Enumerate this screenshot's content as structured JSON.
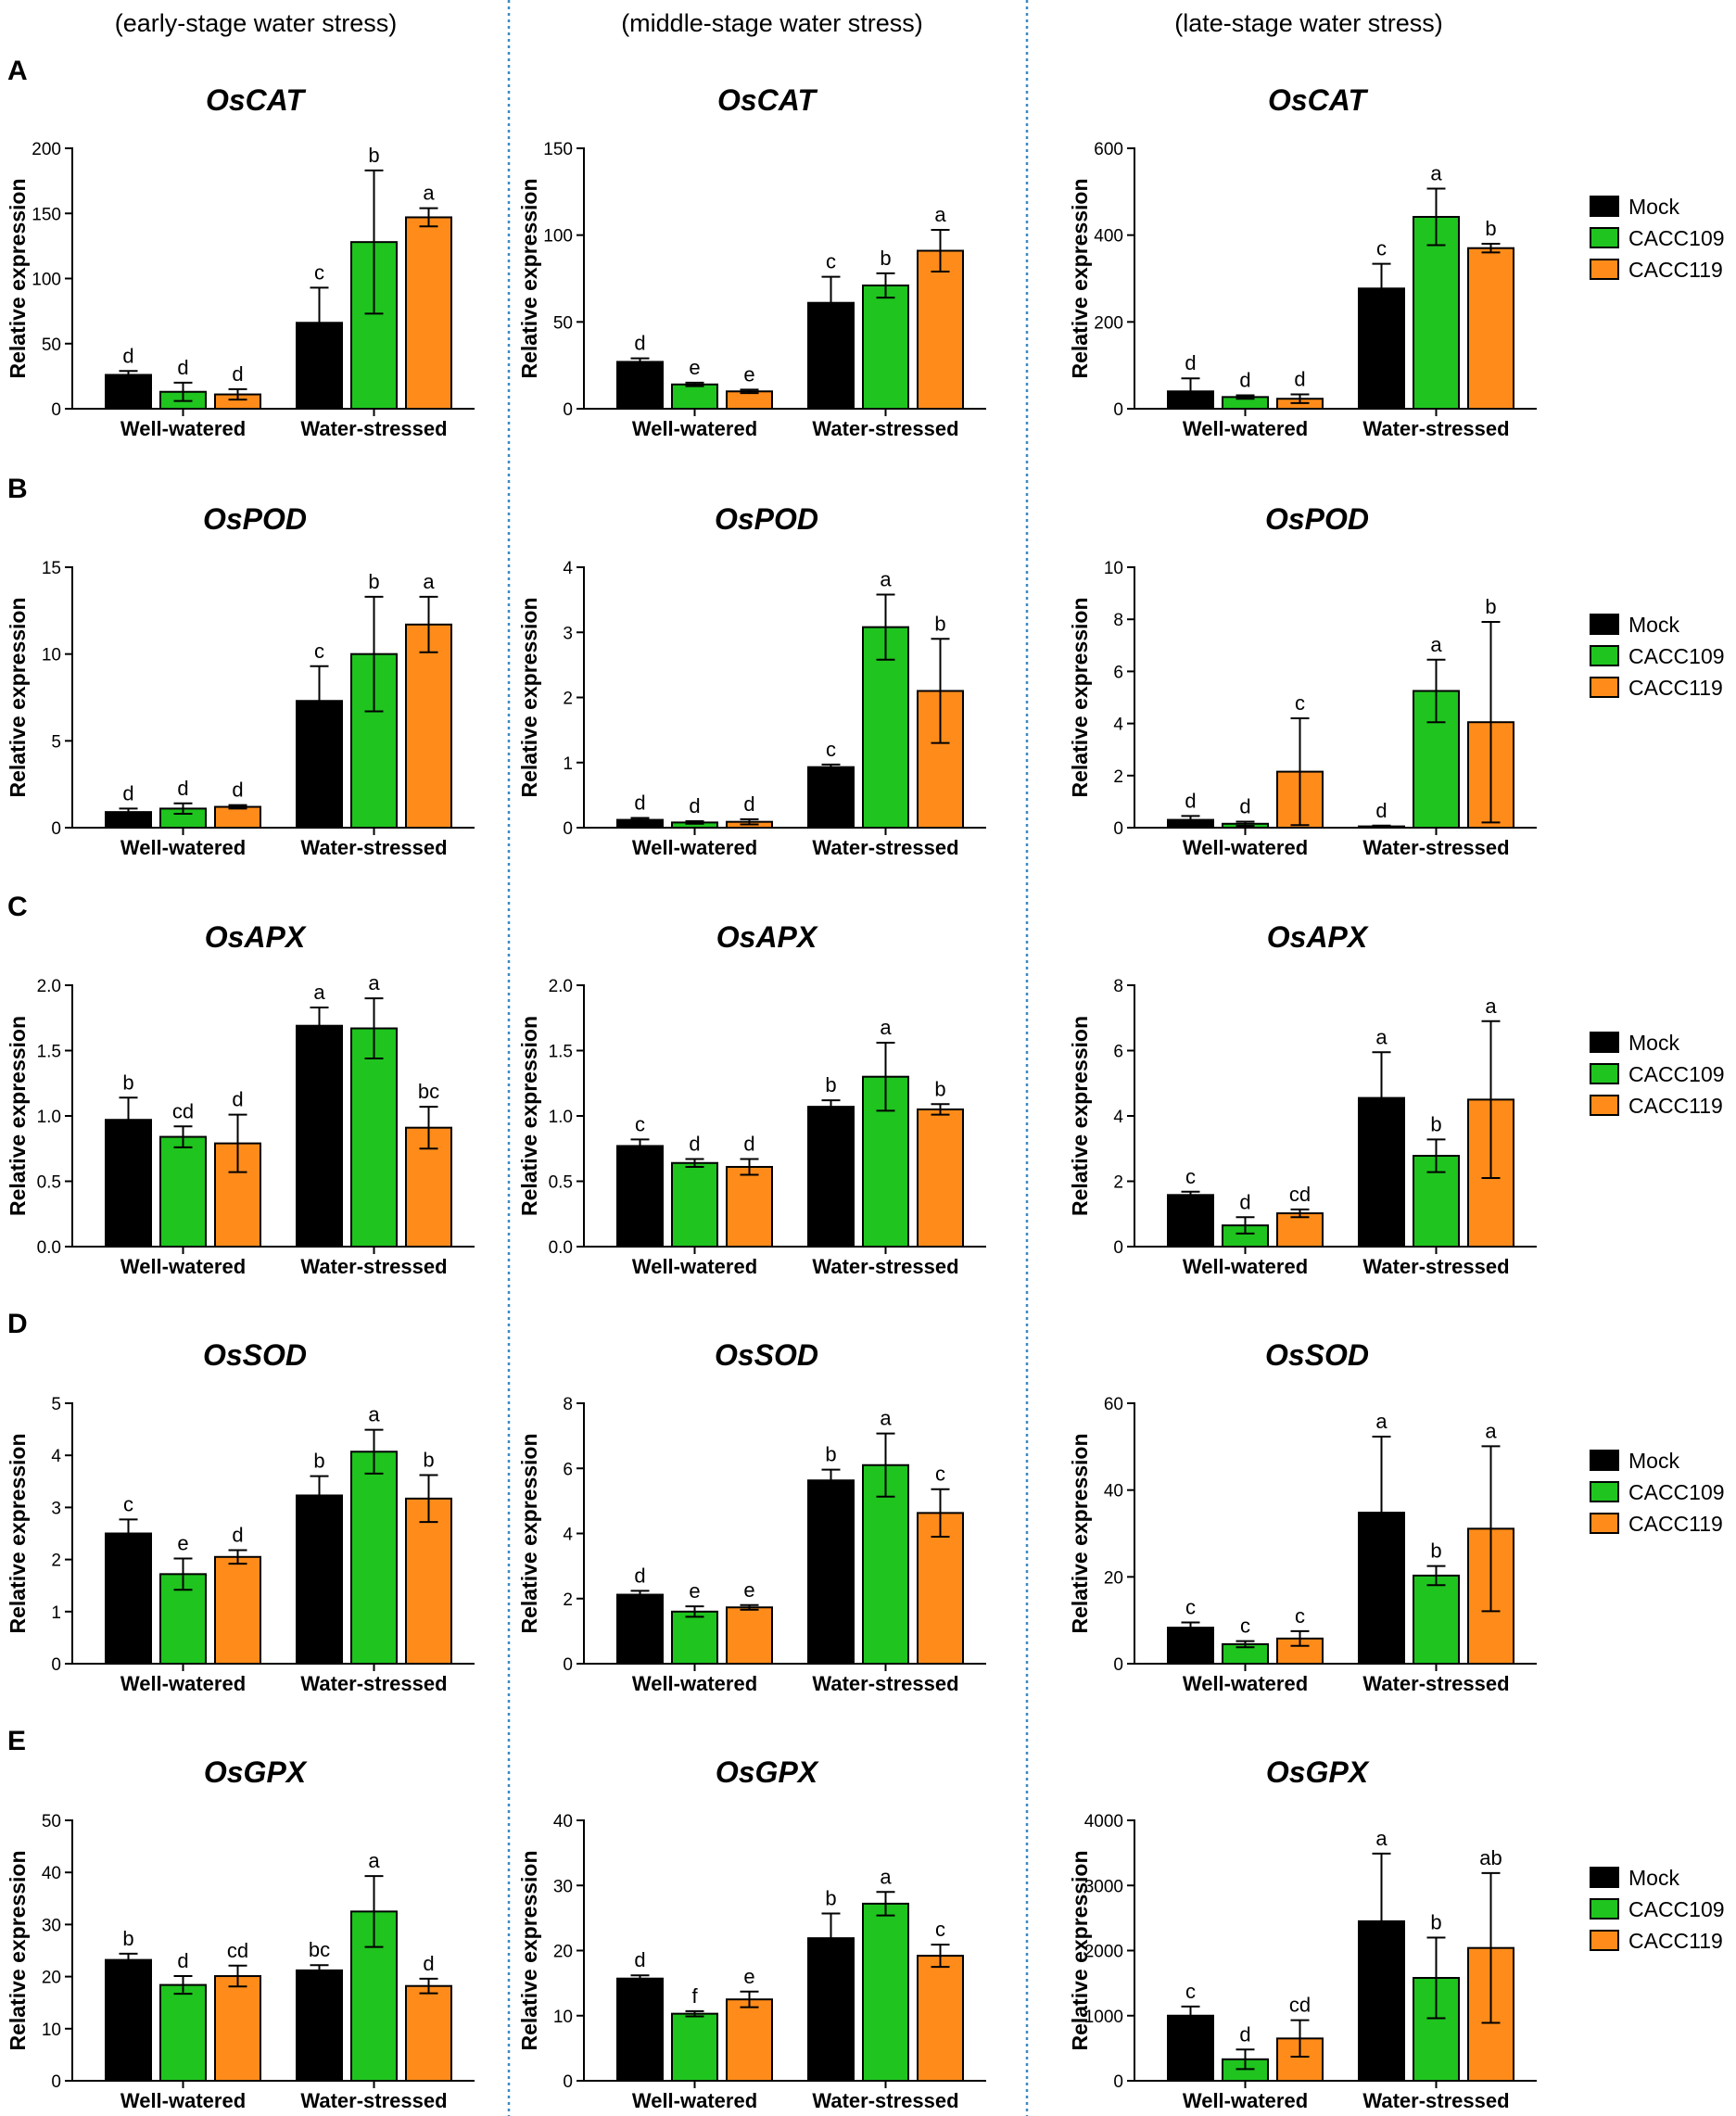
{
  "figure": {
    "column_headers": [
      "(early-stage water stress)",
      "(middle-stage water stress)",
      "(late-stage water stress)"
    ],
    "row_labels": [
      "A",
      "B",
      "C",
      "D",
      "E"
    ],
    "legend": [
      "Mock",
      "CACC109",
      "CACC119"
    ],
    "colors": {
      "Mock": "#000000",
      "CACC109": "#1fc41f",
      "CACC119": "#ff8c1a"
    }
  },
  "chart_data": [
    {
      "row": 0,
      "col": 0,
      "type": "bar",
      "title": "OsCAT",
      "ylabel": "Relative expression",
      "categories": [
        "Well-watered",
        "Water-stressed"
      ],
      "ylim": [
        0,
        200
      ],
      "yticks": [
        0,
        50,
        100,
        150,
        200
      ],
      "tick_labels": [
        "0",
        "50",
        "100",
        "150",
        "200"
      ],
      "series": [
        {
          "name": "Mock",
          "values": [
            26,
            66
          ],
          "errors": [
            3,
            27
          ],
          "labels": [
            "d",
            "c"
          ]
        },
        {
          "name": "CACC109",
          "values": [
            13,
            128
          ],
          "errors": [
            7,
            55
          ],
          "labels": [
            "d",
            "b"
          ]
        },
        {
          "name": "CACC119",
          "values": [
            11,
            147
          ],
          "errors": [
            4,
            7
          ],
          "labels": [
            "d",
            "a"
          ]
        }
      ]
    },
    {
      "row": 0,
      "col": 1,
      "type": "bar",
      "title": "OsCAT",
      "ylabel": "Relative expression",
      "categories": [
        "Well-watered",
        "Water-stressed"
      ],
      "ylim": [
        0,
        150
      ],
      "yticks": [
        0,
        50,
        100,
        150
      ],
      "tick_labels": [
        "0",
        "50",
        "100",
        "150"
      ],
      "series": [
        {
          "name": "Mock",
          "values": [
            27,
            61
          ],
          "errors": [
            2,
            15
          ],
          "labels": [
            "d",
            "c"
          ]
        },
        {
          "name": "CACC109",
          "values": [
            14,
            71
          ],
          "errors": [
            1,
            7
          ],
          "labels": [
            "e",
            "b"
          ]
        },
        {
          "name": "CACC119",
          "values": [
            10,
            91
          ],
          "errors": [
            1,
            12
          ],
          "labels": [
            "e",
            "a"
          ]
        }
      ]
    },
    {
      "row": 0,
      "col": 2,
      "type": "bar",
      "title": "OsCAT",
      "ylabel": "Relative expression",
      "categories": [
        "Well-watered",
        "Water-stressed"
      ],
      "ylim": [
        0,
        600
      ],
      "yticks": [
        0,
        200,
        400,
        600
      ],
      "tick_labels": [
        "0",
        "200",
        "400",
        "600"
      ],
      "series": [
        {
          "name": "Mock",
          "values": [
            40,
            277
          ],
          "errors": [
            30,
            57
          ],
          "labels": [
            "d",
            "c"
          ]
        },
        {
          "name": "CACC109",
          "values": [
            27,
            442
          ],
          "errors": [
            4,
            65
          ],
          "labels": [
            "d",
            "a"
          ]
        },
        {
          "name": "CACC119",
          "values": [
            23,
            370
          ],
          "errors": [
            10,
            10
          ],
          "labels": [
            "d",
            "b"
          ]
        }
      ]
    },
    {
      "row": 1,
      "col": 0,
      "type": "bar",
      "title": "OsPOD",
      "ylabel": "Relative expression",
      "categories": [
        "Well-watered",
        "Water-stressed"
      ],
      "ylim": [
        0,
        15
      ],
      "yticks": [
        0,
        5,
        10,
        15
      ],
      "tick_labels": [
        "0",
        "5",
        "10",
        "15"
      ],
      "series": [
        {
          "name": "Mock",
          "values": [
            0.9,
            7.3
          ],
          "errors": [
            0.2,
            2.0
          ],
          "labels": [
            "d",
            "c"
          ]
        },
        {
          "name": "CACC109",
          "values": [
            1.1,
            10.0
          ],
          "errors": [
            0.3,
            3.3
          ],
          "labels": [
            "d",
            "b"
          ]
        },
        {
          "name": "CACC119",
          "values": [
            1.2,
            11.7
          ],
          "errors": [
            0.1,
            1.6
          ],
          "labels": [
            "d",
            "a"
          ]
        }
      ]
    },
    {
      "row": 1,
      "col": 1,
      "type": "bar",
      "title": "OsPOD",
      "ylabel": "Relative expression",
      "categories": [
        "Well-watered",
        "Water-stressed"
      ],
      "ylim": [
        0,
        4
      ],
      "yticks": [
        0,
        1,
        2,
        3,
        4
      ],
      "tick_labels": [
        "0",
        "1",
        "2",
        "3",
        "4"
      ],
      "series": [
        {
          "name": "Mock",
          "values": [
            0.12,
            0.93
          ],
          "errors": [
            0.03,
            0.04
          ],
          "labels": [
            "d",
            "c"
          ]
        },
        {
          "name": "CACC109",
          "values": [
            0.08,
            3.08
          ],
          "errors": [
            0.02,
            0.5
          ],
          "labels": [
            "d",
            "a"
          ]
        },
        {
          "name": "CACC119",
          "values": [
            0.09,
            2.1
          ],
          "errors": [
            0.04,
            0.8
          ],
          "labels": [
            "d",
            "b"
          ]
        }
      ]
    },
    {
      "row": 1,
      "col": 2,
      "type": "bar",
      "title": "OsPOD",
      "ylabel": "Relative expression",
      "categories": [
        "Well-watered",
        "Water-stressed"
      ],
      "ylim": [
        0,
        10
      ],
      "yticks": [
        0,
        2,
        4,
        6,
        8,
        10
      ],
      "tick_labels": [
        "0",
        "2",
        "4",
        "6",
        "8",
        "10"
      ],
      "series": [
        {
          "name": "Mock",
          "values": [
            0.3,
            0.05
          ],
          "errors": [
            0.15,
            0.03
          ],
          "labels": [
            "d",
            "d"
          ]
        },
        {
          "name": "CACC109",
          "values": [
            0.15,
            5.25
          ],
          "errors": [
            0.08,
            1.2
          ],
          "labels": [
            "d",
            "a"
          ]
        },
        {
          "name": "CACC119",
          "values": [
            2.15,
            4.05
          ],
          "errors": [
            2.05,
            3.85
          ],
          "labels": [
            "c",
            "b"
          ]
        }
      ]
    },
    {
      "row": 2,
      "col": 0,
      "type": "bar",
      "title": "OsAPX",
      "ylabel": "Relative expression",
      "categories": [
        "Well-watered",
        "Water-stressed"
      ],
      "ylim": [
        0,
        2.0
      ],
      "yticks": [
        0,
        0.5,
        1.0,
        1.5,
        2.0
      ],
      "tick_labels": [
        "0.0",
        "0.5",
        "1.0",
        "1.5",
        "2.0"
      ],
      "series": [
        {
          "name": "Mock",
          "values": [
            0.97,
            1.69
          ],
          "errors": [
            0.17,
            0.14
          ],
          "labels": [
            "b",
            "a"
          ]
        },
        {
          "name": "CACC109",
          "values": [
            0.84,
            1.67
          ],
          "errors": [
            0.08,
            0.23
          ],
          "labels": [
            "cd",
            "a"
          ]
        },
        {
          "name": "CACC119",
          "values": [
            0.79,
            0.91
          ],
          "errors": [
            0.22,
            0.16
          ],
          "labels": [
            "d",
            "bc"
          ]
        }
      ]
    },
    {
      "row": 2,
      "col": 1,
      "type": "bar",
      "title": "OsAPX",
      "ylabel": "Relative expression",
      "categories": [
        "Well-watered",
        "Water-stressed"
      ],
      "ylim": [
        0,
        2.0
      ],
      "yticks": [
        0,
        0.5,
        1.0,
        1.5,
        2.0
      ],
      "tick_labels": [
        "0.0",
        "0.5",
        "1.0",
        "1.5",
        "2.0"
      ],
      "series": [
        {
          "name": "Mock",
          "values": [
            0.77,
            1.07
          ],
          "errors": [
            0.05,
            0.05
          ],
          "labels": [
            "c",
            "b"
          ]
        },
        {
          "name": "CACC109",
          "values": [
            0.64,
            1.3
          ],
          "errors": [
            0.03,
            0.26
          ],
          "labels": [
            "d",
            "a"
          ]
        },
        {
          "name": "CACC119",
          "values": [
            0.61,
            1.05
          ],
          "errors": [
            0.06,
            0.04
          ],
          "labels": [
            "d",
            "b"
          ]
        }
      ]
    },
    {
      "row": 2,
      "col": 2,
      "type": "bar",
      "title": "OsAPX",
      "ylabel": "Relative expression",
      "categories": [
        "Well-watered",
        "Water-stressed"
      ],
      "ylim": [
        0,
        8
      ],
      "yticks": [
        0,
        2,
        4,
        6,
        8
      ],
      "tick_labels": [
        "0",
        "2",
        "4",
        "6",
        "8"
      ],
      "series": [
        {
          "name": "Mock",
          "values": [
            1.58,
            4.55
          ],
          "errors": [
            0.1,
            1.4
          ],
          "labels": [
            "c",
            "a"
          ]
        },
        {
          "name": "CACC109",
          "values": [
            0.65,
            2.78
          ],
          "errors": [
            0.25,
            0.5
          ],
          "labels": [
            "d",
            "b"
          ]
        },
        {
          "name": "CACC119",
          "values": [
            1.02,
            4.5
          ],
          "errors": [
            0.12,
            2.4
          ],
          "labels": [
            "cd",
            "a"
          ]
        }
      ]
    },
    {
      "row": 3,
      "col": 0,
      "type": "bar",
      "title": "OsSOD",
      "ylabel": "Relative expression",
      "categories": [
        "Well-watered",
        "Water-stressed"
      ],
      "ylim": [
        0,
        5
      ],
      "yticks": [
        0,
        1,
        2,
        3,
        4,
        5
      ],
      "tick_labels": [
        "0",
        "1",
        "2",
        "3",
        "4",
        "5"
      ],
      "series": [
        {
          "name": "Mock",
          "values": [
            2.5,
            3.23
          ],
          "errors": [
            0.27,
            0.37
          ],
          "labels": [
            "c",
            "b"
          ]
        },
        {
          "name": "CACC109",
          "values": [
            1.72,
            4.07
          ],
          "errors": [
            0.3,
            0.42
          ],
          "labels": [
            "e",
            "a"
          ]
        },
        {
          "name": "CACC119",
          "values": [
            2.05,
            3.17
          ],
          "errors": [
            0.13,
            0.45
          ],
          "labels": [
            "d",
            "b"
          ]
        }
      ]
    },
    {
      "row": 3,
      "col": 1,
      "type": "bar",
      "title": "OsSOD",
      "ylabel": "Relative expression",
      "categories": [
        "Well-watered",
        "Water-stressed"
      ],
      "ylim": [
        0,
        8
      ],
      "yticks": [
        0,
        2,
        4,
        6,
        8
      ],
      "tick_labels": [
        "0",
        "2",
        "4",
        "6",
        "8"
      ],
      "series": [
        {
          "name": "Mock",
          "values": [
            2.12,
            5.63
          ],
          "errors": [
            0.12,
            0.33
          ],
          "labels": [
            "d",
            "b"
          ]
        },
        {
          "name": "CACC109",
          "values": [
            1.6,
            6.1
          ],
          "errors": [
            0.16,
            0.97
          ],
          "labels": [
            "e",
            "a"
          ]
        },
        {
          "name": "CACC119",
          "values": [
            1.73,
            4.63
          ],
          "errors": [
            0.07,
            0.73
          ],
          "labels": [
            "e",
            "c"
          ]
        }
      ]
    },
    {
      "row": 3,
      "col": 2,
      "type": "bar",
      "title": "OsSOD",
      "ylabel": "Relative expression",
      "categories": [
        "Well-watered",
        "Water-stressed"
      ],
      "ylim": [
        0,
        60
      ],
      "yticks": [
        0,
        20,
        40,
        60
      ],
      "tick_labels": [
        "0",
        "20",
        "40",
        "60"
      ],
      "series": [
        {
          "name": "Mock",
          "values": [
            8.3,
            34.8
          ],
          "errors": [
            1.2,
            17.5
          ],
          "labels": [
            "c",
            "a"
          ]
        },
        {
          "name": "CACC109",
          "values": [
            4.5,
            20.3
          ],
          "errors": [
            0.7,
            2.2
          ],
          "labels": [
            "c",
            "b"
          ]
        },
        {
          "name": "CACC119",
          "values": [
            5.8,
            31.1
          ],
          "errors": [
            1.7,
            19.0
          ],
          "labels": [
            "c",
            "a"
          ]
        }
      ]
    },
    {
      "row": 4,
      "col": 0,
      "type": "bar",
      "title": "OsGPX",
      "ylabel": "Relative expression",
      "categories": [
        "Well-watered",
        "Water-stressed"
      ],
      "ylim": [
        0,
        50
      ],
      "yticks": [
        0,
        10,
        20,
        30,
        40,
        50
      ],
      "tick_labels": [
        "0",
        "10",
        "20",
        "30",
        "40",
        "50"
      ],
      "series": [
        {
          "name": "Mock",
          "values": [
            23.2,
            21.2
          ],
          "errors": [
            1.2,
            1.0
          ],
          "labels": [
            "b",
            "bc"
          ]
        },
        {
          "name": "CACC109",
          "values": [
            18.4,
            32.5
          ],
          "errors": [
            1.7,
            6.8
          ],
          "labels": [
            "d",
            "a"
          ]
        },
        {
          "name": "CACC119",
          "values": [
            20.1,
            18.2
          ],
          "errors": [
            2.0,
            1.4
          ],
          "labels": [
            "cd",
            "d"
          ]
        }
      ]
    },
    {
      "row": 4,
      "col": 1,
      "type": "bar",
      "title": "OsGPX",
      "ylabel": "Relative expression",
      "categories": [
        "Well-watered",
        "Water-stressed"
      ],
      "ylim": [
        0,
        40
      ],
      "yticks": [
        0,
        10,
        20,
        30,
        40
      ],
      "tick_labels": [
        "0",
        "10",
        "20",
        "30",
        "40"
      ],
      "series": [
        {
          "name": "Mock",
          "values": [
            15.7,
            21.9
          ],
          "errors": [
            0.5,
            3.8
          ],
          "labels": [
            "d",
            "b"
          ]
        },
        {
          "name": "CACC109",
          "values": [
            10.3,
            27.2
          ],
          "errors": [
            0.4,
            1.8
          ],
          "labels": [
            "f",
            "a"
          ]
        },
        {
          "name": "CACC119",
          "values": [
            12.5,
            19.2
          ],
          "errors": [
            1.2,
            1.7
          ],
          "labels": [
            "e",
            "c"
          ]
        }
      ]
    },
    {
      "row": 4,
      "col": 2,
      "type": "bar",
      "title": "OsGPX",
      "ylabel": "Relative expression",
      "categories": [
        "Well-watered",
        "Water-stressed"
      ],
      "ylim": [
        0,
        4000
      ],
      "yticks": [
        0,
        1000,
        2000,
        3000,
        4000
      ],
      "tick_labels": [
        "0",
        "1000",
        "2000",
        "3000",
        "4000"
      ],
      "series": [
        {
          "name": "Mock",
          "values": [
            1000,
            2450
          ],
          "errors": [
            140,
            1040
          ],
          "labels": [
            "c",
            "a"
          ]
        },
        {
          "name": "CACC109",
          "values": [
            330,
            1580
          ],
          "errors": [
            150,
            620
          ],
          "labels": [
            "d",
            "b"
          ]
        },
        {
          "name": "CACC119",
          "values": [
            650,
            2040
          ],
          "errors": [
            280,
            1150
          ],
          "labels": [
            "cd",
            "ab"
          ]
        }
      ]
    }
  ]
}
